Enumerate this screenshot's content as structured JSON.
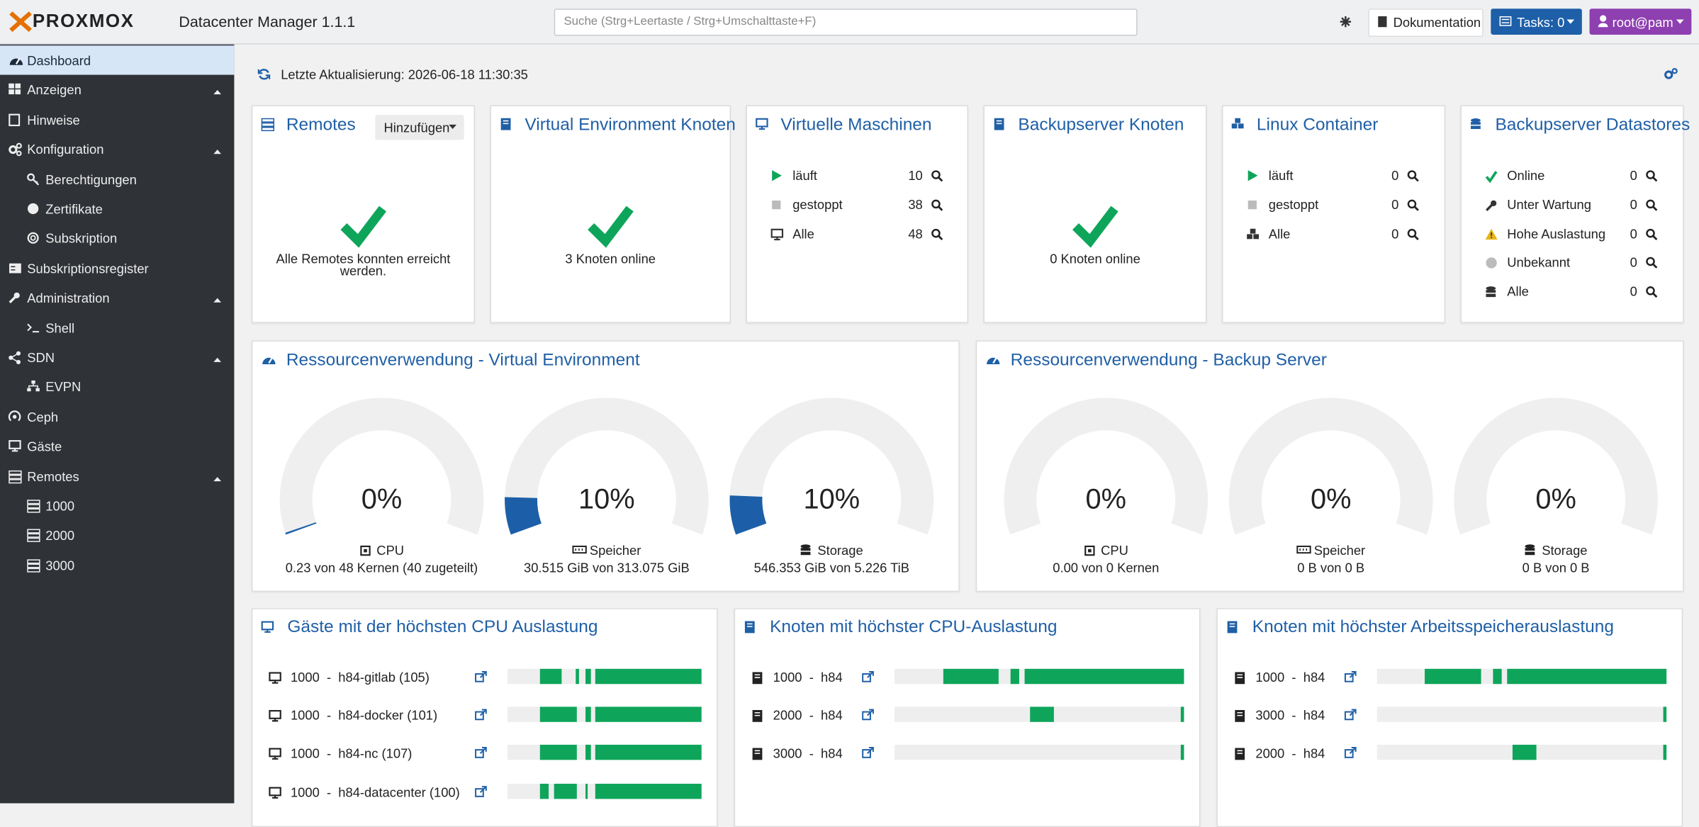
{
  "header": {
    "brand": "PROXMOX",
    "title": "Datacenter Manager 1.1.1",
    "search_placeholder": "Suche (Strg+Leertaste / Strg+Umschalttaste+F)",
    "docs": "Dokumentation",
    "tasks": "Tasks: 0",
    "user": "root@pam"
  },
  "sidebar": [
    {
      "label": "Dashboard",
      "level": 0,
      "active": true
    },
    {
      "label": "Anzeigen",
      "level": 0,
      "expanded": true
    },
    {
      "label": "Hinweise",
      "level": 0
    },
    {
      "label": "Konfiguration",
      "level": 0,
      "expanded": true
    },
    {
      "label": "Berechtigungen",
      "level": 1
    },
    {
      "label": "Zertifikate",
      "level": 1
    },
    {
      "label": "Subskription",
      "level": 1
    },
    {
      "label": "Subskriptionsregister",
      "level": 0
    },
    {
      "label": "Administration",
      "level": 0,
      "expanded": true
    },
    {
      "label": "Shell",
      "level": 1
    },
    {
      "label": "SDN",
      "level": 0,
      "expanded": true
    },
    {
      "label": "EVPN",
      "level": 1
    },
    {
      "label": "Ceph",
      "level": 0
    },
    {
      "label": "Gäste",
      "level": 0
    },
    {
      "label": "Remotes",
      "level": 0,
      "expanded": true
    },
    {
      "label": "1000",
      "level": 1
    },
    {
      "label": "2000",
      "level": 1
    },
    {
      "label": "3000",
      "level": 1
    }
  ],
  "toolbar": {
    "last_update": "Letzte Aktualisierung: 2026-06-18 11:30:35"
  },
  "status_panels": [
    {
      "title": "Remotes",
      "button": "Hinzufügen",
      "message": "Alle Remotes konnten erreicht werden."
    },
    {
      "title": "Virtual Environment Knoten",
      "message": "3 Knoten online"
    },
    {
      "title": "Virtuelle Maschinen",
      "rows": [
        {
          "label": "läuft",
          "count": 10
        },
        {
          "label": "gestoppt",
          "count": 38
        },
        {
          "label": "Alle",
          "count": 48
        }
      ]
    },
    {
      "title": "Backupserver Knoten",
      "message": "0 Knoten online"
    },
    {
      "title": "Linux Container",
      "rows": [
        {
          "label": "läuft",
          "count": 0
        },
        {
          "label": "gestoppt",
          "count": 0
        },
        {
          "label": "Alle",
          "count": 0
        }
      ]
    },
    {
      "title": "Backupserver Datastores",
      "rows": [
        {
          "label": "Online",
          "count": 0
        },
        {
          "label": "Unter Wartung",
          "count": 0
        },
        {
          "label": "Hohe Auslastung",
          "count": 0
        },
        {
          "label": "Unbekannt",
          "count": 0
        },
        {
          "label": "Alle",
          "count": 0
        }
      ]
    }
  ],
  "resource_panels": [
    {
      "title": "Ressourcenverwendung - Virtual Environment",
      "gauges": [
        {
          "value": 0.48,
          "label": "0%",
          "name": "CPU",
          "detail": "0.23 von 48 Kernen (40 zugeteilt)"
        },
        {
          "value": 9.75,
          "label": "10%",
          "name": "Speicher",
          "detail": "30.515 GiB von 313.075 GiB"
        },
        {
          "value": 10.2,
          "label": "10%",
          "name": "Storage",
          "detail": "546.353 GiB von 5.226 TiB"
        }
      ]
    },
    {
      "title": "Ressourcenverwendung - Backup Server",
      "gauges": [
        {
          "value": 0,
          "label": "0%",
          "name": "CPU",
          "detail": "0.00 von 0 Kernen"
        },
        {
          "value": 0,
          "label": "0%",
          "name": "Speicher",
          "detail": "0 B von 0 B"
        },
        {
          "value": 0,
          "label": "0%",
          "name": "Storage",
          "detail": "0 B von 0 B"
        }
      ]
    }
  ],
  "top_panels": [
    {
      "title": "Gäste mit der höchsten CPU Auslastung",
      "rows": [
        "1000  -  h84-gitlab (105)",
        "1000  -  h84-docker (101)",
        "1000  -  h84-nc (107)",
        "1000  -  h84-datacenter (100)"
      ]
    },
    {
      "title": "Knoten mit höchster CPU-Auslastung",
      "rows": [
        "1000  -  h84",
        "2000  -  h84",
        "3000  -  h84"
      ]
    },
    {
      "title": "Knoten mit höchster Arbeitsspeicherauslastung",
      "rows": [
        "1000  -  h84",
        "3000  -  h84",
        "2000  -  h84"
      ]
    }
  ]
}
